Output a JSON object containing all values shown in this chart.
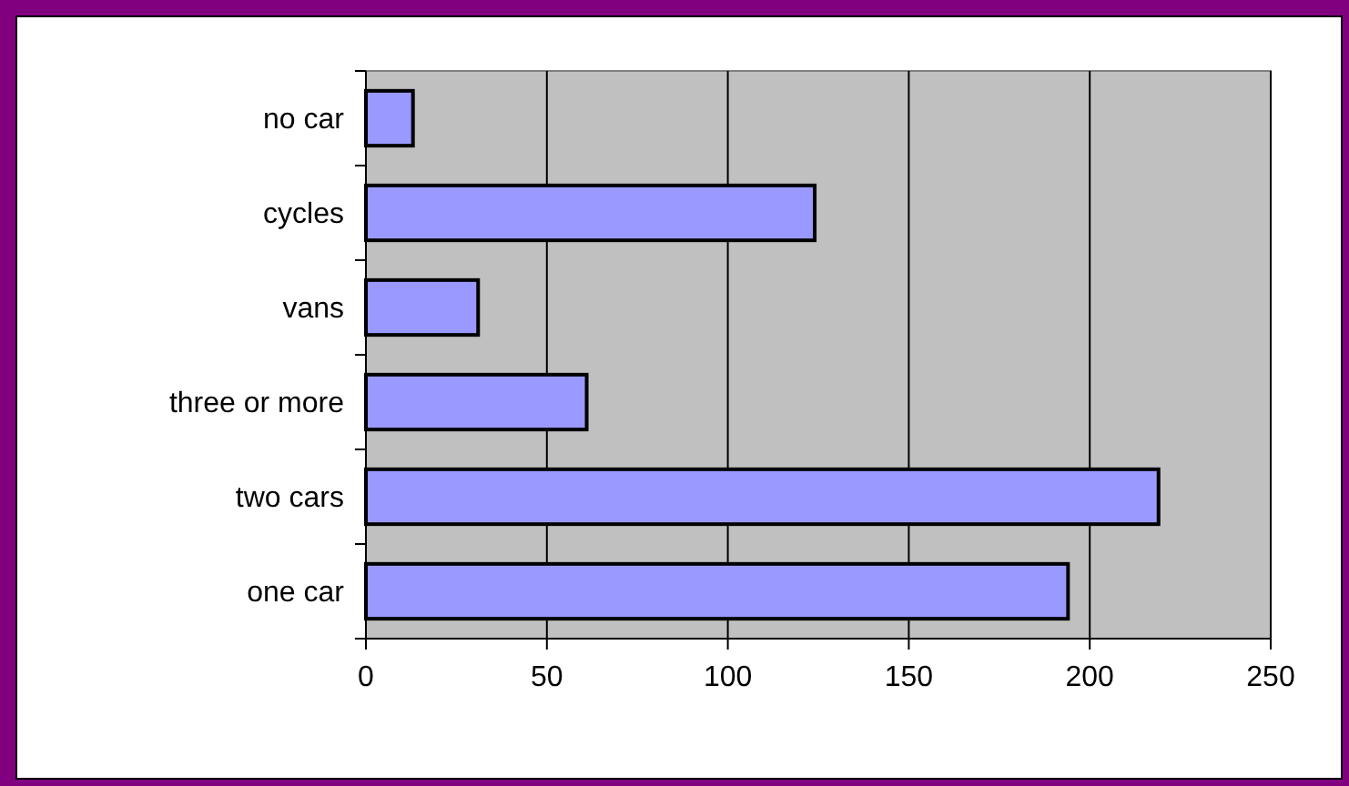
{
  "chart_data": {
    "type": "bar",
    "orientation": "horizontal",
    "categories": [
      "no car",
      "cycles",
      "vans",
      "three or more",
      "two cars",
      "one car"
    ],
    "values": [
      13,
      124,
      31,
      61,
      219,
      194
    ],
    "color": "#9999ff",
    "xlim": [
      0,
      250
    ],
    "xticks": [
      0,
      50,
      100,
      150,
      200,
      250
    ],
    "grid": "x"
  }
}
